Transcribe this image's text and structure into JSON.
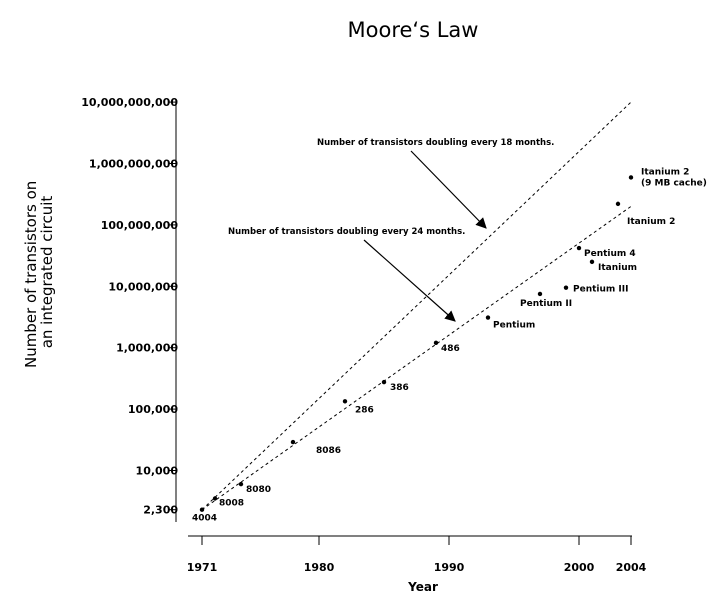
{
  "chart_data": {
    "type": "scatter",
    "title": "Moore‘s Law",
    "xlabel": "Year",
    "ylabel_lines": [
      "Number of transistors on",
      "an integrated circuit"
    ],
    "y_scale": "log",
    "xlim": [
      1971,
      2004
    ],
    "ylim": [
      2300,
      10000000000
    ],
    "x_ticks": [
      1971,
      1980,
      1990,
      2000,
      2004
    ],
    "y_ticks": [
      {
        "value": 2300,
        "label": "2,300"
      },
      {
        "value": 10000,
        "label": "10,000"
      },
      {
        "value": 100000,
        "label": "100,000"
      },
      {
        "value": 1000000,
        "label": "1,000,000"
      },
      {
        "value": 10000000,
        "label": "10,000,000"
      },
      {
        "value": 100000000,
        "label": "100,000,000"
      },
      {
        "value": 1000000000,
        "label": "1,000,000,000"
      },
      {
        "value": 10000000000,
        "label": "10,000,000,000"
      }
    ],
    "grid": false,
    "points": [
      {
        "label": "4004",
        "x": 1971,
        "y": 2300
      },
      {
        "label": "8008",
        "x": 1972,
        "y": 3500
      },
      {
        "label": "8080",
        "x": 1974,
        "y": 6000
      },
      {
        "label": "8086",
        "x": 1978,
        "y": 29000
      },
      {
        "label": "286",
        "x": 1982,
        "y": 134000
      },
      {
        "label": "386",
        "x": 1985,
        "y": 275000
      },
      {
        "label": "486",
        "x": 1989,
        "y": 1200000
      },
      {
        "label": "Pentium",
        "x": 1993,
        "y": 3100000
      },
      {
        "label": "Pentium II",
        "x": 1997,
        "y": 7500000
      },
      {
        "label": "Pentium III",
        "x": 1999,
        "y": 9500000
      },
      {
        "label": "Pentium 4",
        "x": 2000,
        "y": 42000000
      },
      {
        "label": "Itanium",
        "x": 2001,
        "y": 25000000
      },
      {
        "label": "Itanium 2",
        "x": 2003,
        "y": 220000000
      },
      {
        "label": "Itanium 2\n(9 MB cache)",
        "x": 2004,
        "y": 592000000
      }
    ],
    "trend_lines": [
      {
        "label": "Number of transistors doubling every 18 months.",
        "from": [
          1971,
          2300
        ],
        "to": [
          2004,
          10000000000
        ],
        "style": "dashed"
      },
      {
        "label": "Number of transistors doubling every 24 months.",
        "from": [
          1971,
          2300
        ],
        "to": [
          2004,
          200000000
        ],
        "style": "dashed"
      }
    ]
  }
}
